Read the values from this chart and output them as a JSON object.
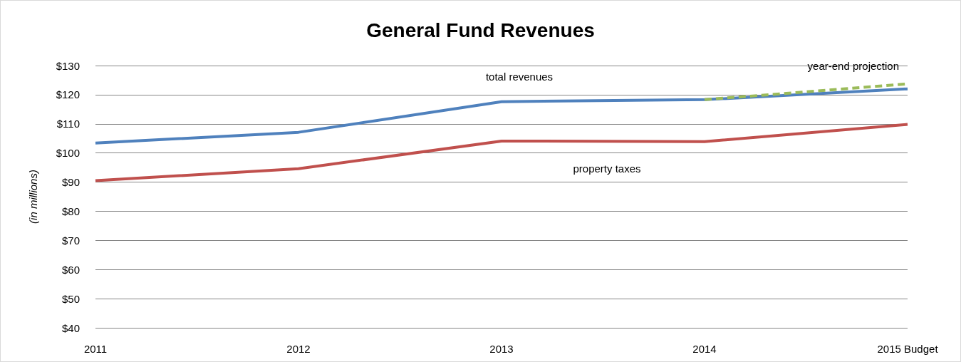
{
  "chart_data": {
    "type": "line",
    "title": "General Fund Revenues",
    "ylabel": "(in millions)",
    "categories": [
      "2011",
      "2012",
      "2013",
      "2014",
      "2015 Budget"
    ],
    "series": [
      {
        "name": "total revenues",
        "color": "#4f81bd",
        "values": [
          103.4,
          107.1,
          117.6,
          118.3,
          122.0
        ]
      },
      {
        "name": "property taxes",
        "color": "#c0504d",
        "values": [
          90.5,
          94.6,
          104.1,
          103.9,
          109.8
        ]
      },
      {
        "name": "year-end projection",
        "color": "#9bbb59",
        "values": [
          null,
          null,
          null,
          118.3,
          123.7
        ],
        "line_style": "dashed"
      }
    ],
    "ylim": [
      40,
      130
    ],
    "yticks": [
      {
        "value": 40,
        "label": "$40"
      },
      {
        "value": 50,
        "label": "$50"
      },
      {
        "value": 60,
        "label": "$60"
      },
      {
        "value": 70,
        "label": "$70"
      },
      {
        "value": 80,
        "label": "$80"
      },
      {
        "value": 90,
        "label": "$90"
      },
      {
        "value": 100,
        "label": "$100"
      },
      {
        "value": 110,
        "label": "$110"
      },
      {
        "value": 120,
        "label": "$120"
      },
      {
        "value": 130,
        "label": "$130"
      }
    ],
    "grid": "y",
    "legend": false,
    "marker": "none",
    "line_style": "solid"
  }
}
